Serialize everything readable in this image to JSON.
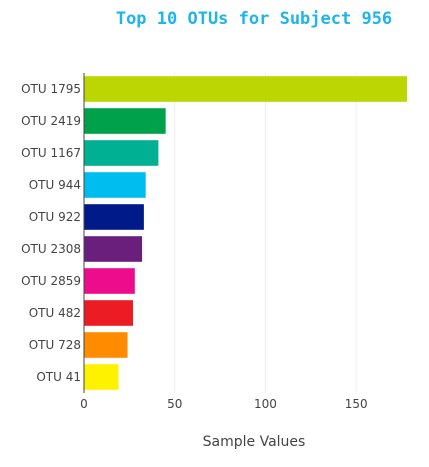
{
  "chart_data": {
    "type": "bar",
    "orientation": "horizontal",
    "title": "Top 10 OTUs for Subject 956",
    "title_color": "#1fb4ea",
    "xlabel": "Sample Values",
    "ylabel": "",
    "xlim": [
      0,
      178
    ],
    "xticks": [
      0,
      50,
      100,
      150
    ],
    "grid": true,
    "legend": "none",
    "categories": [
      "OTU 1795",
      "OTU 2419",
      "OTU 1167",
      "OTU 944",
      "OTU 922",
      "OTU 2308",
      "OTU 2859",
      "OTU 482",
      "OTU 728",
      "OTU 41"
    ],
    "values": [
      178,
      45,
      41,
      34,
      33,
      32,
      28,
      27,
      24,
      19
    ],
    "colors": [
      "#bcd602",
      "#00a14b",
      "#00b092",
      "#00bdf0",
      "#001a8a",
      "#6b1f7c",
      "#ec0c8c",
      "#ec1c24",
      "#ff8c00",
      "#fff200"
    ]
  }
}
